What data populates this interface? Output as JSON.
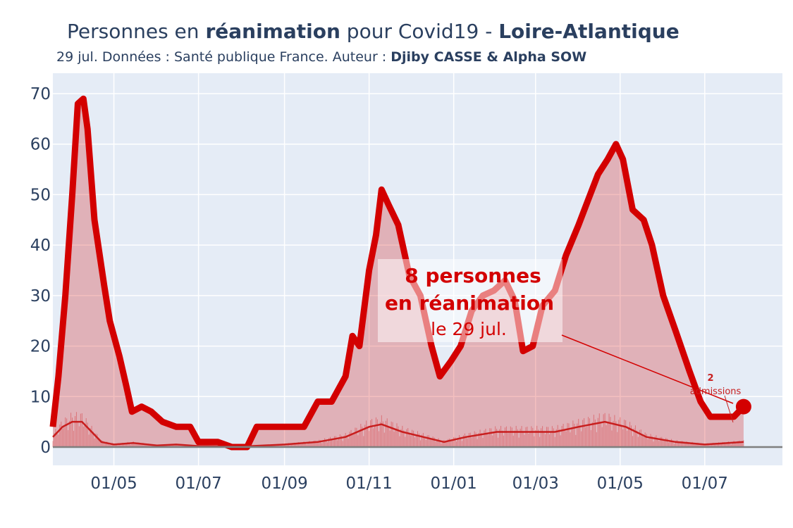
{
  "header": {
    "title_prefix": "Personnes en ",
    "title_bold1": "réanimation",
    "title_mid": " pour Covid19 - ",
    "title_bold2": "Loire-Atlantique",
    "subtitle_prefix": "29 jul. Données : Santé publique France. Auteur : ",
    "subtitle_authors": "Djiby CASSE & Alpha SOW"
  },
  "annotation": {
    "line1": "8 personnes",
    "line2": "en réanimation",
    "line3": "le 29 jul.",
    "admissions_value": "2",
    "admissions_label": "admissions"
  },
  "colors": {
    "plot_bg": "#e5ecf6",
    "line": "#d30000",
    "fill": "rgba(211,0,0,0.25)",
    "admissions_line": "#c81e1e",
    "text": "#2a3f5f"
  },
  "chart_data": {
    "type": "line",
    "title": "Personnes en réanimation pour Covid19 - Loire-Atlantique",
    "xlabel": "",
    "ylabel": "",
    "ylim": [
      0,
      72
    ],
    "yticks": [
      0,
      10,
      20,
      30,
      40,
      50,
      60,
      70
    ],
    "xlim": [
      "2020-03-18",
      "2021-08-26"
    ],
    "xticks": [
      {
        "date": "2020-05-01",
        "label": "01/05"
      },
      {
        "date": "2020-07-01",
        "label": "01/07"
      },
      {
        "date": "2020-09-01",
        "label": "01/09"
      },
      {
        "date": "2020-11-01",
        "label": "01/11"
      },
      {
        "date": "2021-01-01",
        "label": "01/01"
      },
      {
        "date": "2021-03-01",
        "label": "01/03"
      },
      {
        "date": "2021-05-01",
        "label": "01/05"
      },
      {
        "date": "2021-07-01",
        "label": "01/07"
      }
    ],
    "grid": true,
    "series": [
      {
        "points": [
          [
            "2020-03-18",
            4
          ],
          [
            "2020-03-22",
            14
          ],
          [
            "2020-03-27",
            30
          ],
          [
            "2020-04-01",
            50
          ],
          [
            "2020-04-05",
            68
          ],
          [
            "2020-04-09",
            69
          ],
          [
            "2020-04-12",
            63
          ],
          [
            "2020-04-17",
            45
          ],
          [
            "2020-04-24",
            32
          ],
          [
            "2020-04-28",
            25
          ],
          [
            "2020-05-05",
            18
          ],
          [
            "2020-05-10",
            12
          ],
          [
            "2020-05-14",
            7
          ],
          [
            "2020-05-21",
            8
          ],
          [
            "2020-05-28",
            7
          ],
          [
            "2020-06-05",
            5
          ],
          [
            "2020-06-15",
            4
          ],
          [
            "2020-06-25",
            4
          ],
          [
            "2020-07-01",
            1
          ],
          [
            "2020-07-15",
            1
          ],
          [
            "2020-07-25",
            0
          ],
          [
            "2020-08-05",
            0
          ],
          [
            "2020-08-12",
            4
          ],
          [
            "2020-08-25",
            4
          ],
          [
            "2020-09-05",
            4
          ],
          [
            "2020-09-15",
            4
          ],
          [
            "2020-09-25",
            9
          ],
          [
            "2020-10-05",
            9
          ],
          [
            "2020-10-15",
            14
          ],
          [
            "2020-10-20",
            22
          ],
          [
            "2020-10-25",
            20
          ],
          [
            "2020-11-01",
            35
          ],
          [
            "2020-11-06",
            42
          ],
          [
            "2020-11-10",
            51
          ],
          [
            "2020-11-15",
            48
          ],
          [
            "2020-11-22",
            44
          ],
          [
            "2020-11-30",
            34
          ],
          [
            "2020-12-08",
            30
          ],
          [
            "2020-12-16",
            20
          ],
          [
            "2020-12-22",
            14
          ],
          [
            "2020-12-30",
            17
          ],
          [
            "2021-01-06",
            20
          ],
          [
            "2021-01-14",
            27
          ],
          [
            "2021-01-22",
            30
          ],
          [
            "2021-01-30",
            31
          ],
          [
            "2021-02-07",
            33
          ],
          [
            "2021-02-14",
            29
          ],
          [
            "2021-02-20",
            19
          ],
          [
            "2021-02-27",
            20
          ],
          [
            "2021-03-06",
            28
          ],
          [
            "2021-03-15",
            31
          ],
          [
            "2021-03-23",
            38
          ],
          [
            "2021-04-01",
            44
          ],
          [
            "2021-04-08",
            49
          ],
          [
            "2021-04-15",
            54
          ],
          [
            "2021-04-22",
            57
          ],
          [
            "2021-04-28",
            60
          ],
          [
            "2021-05-03",
            57
          ],
          [
            "2021-05-10",
            47
          ],
          [
            "2021-05-18",
            45
          ],
          [
            "2021-05-24",
            40
          ],
          [
            "2021-06-01",
            30
          ],
          [
            "2021-06-10",
            23
          ],
          [
            "2021-06-20",
            15
          ],
          [
            "2021-06-28",
            9
          ],
          [
            "2021-07-05",
            6
          ],
          [
            "2021-07-14",
            6
          ],
          [
            "2021-07-22",
            6
          ],
          [
            "2021-07-29",
            8
          ]
        ]
      },
      {
        "points": [
          [
            "2020-03-18",
            2
          ],
          [
            "2020-03-25",
            4
          ],
          [
            "2020-04-01",
            5
          ],
          [
            "2020-04-08",
            5
          ],
          [
            "2020-04-15",
            3
          ],
          [
            "2020-04-22",
            1
          ],
          [
            "2020-05-01",
            0.5
          ],
          [
            "2020-05-15",
            0.8
          ],
          [
            "2020-06-01",
            0.3
          ],
          [
            "2020-06-15",
            0.5
          ],
          [
            "2020-07-01",
            0.2
          ],
          [
            "2020-08-01",
            0.1
          ],
          [
            "2020-09-01",
            0.5
          ],
          [
            "2020-09-25",
            1
          ],
          [
            "2020-10-15",
            2
          ],
          [
            "2020-11-01",
            4
          ],
          [
            "2020-11-10",
            4.5
          ],
          [
            "2020-11-25",
            3
          ],
          [
            "2020-12-10",
            2
          ],
          [
            "2020-12-25",
            1
          ],
          [
            "2021-01-10",
            2
          ],
          [
            "2021-02-01",
            3
          ],
          [
            "2021-02-20",
            3
          ],
          [
            "2021-03-15",
            3
          ],
          [
            "2021-04-01",
            4
          ],
          [
            "2021-04-20",
            5
          ],
          [
            "2021-05-05",
            4
          ],
          [
            "2021-05-20",
            2
          ],
          [
            "2021-06-10",
            1
          ],
          [
            "2021-07-01",
            0.5
          ],
          [
            "2021-07-29",
            1
          ]
        ]
      }
    ]
  }
}
